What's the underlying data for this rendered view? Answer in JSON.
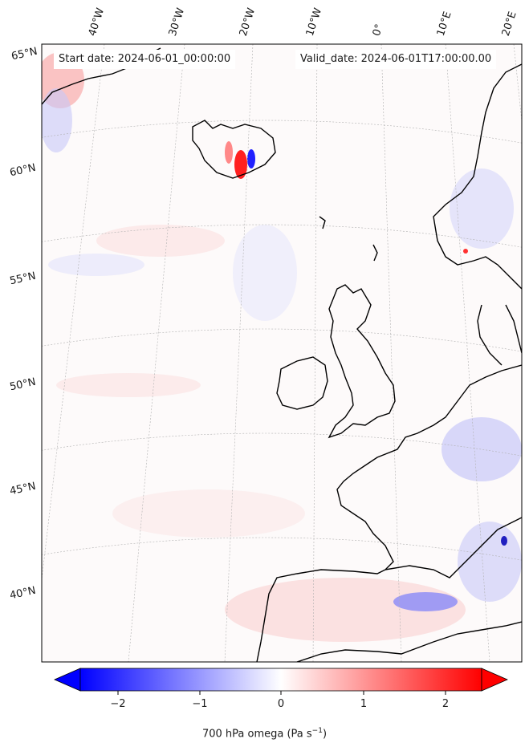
{
  "map": {
    "start_date": "Start date: 2024-06-01_00:00:00",
    "valid_date": "Valid_date: 2024-06-01T17:00:00.00",
    "lon_labels": [
      "40°W",
      "30°W",
      "20°W",
      "10°W",
      "0°",
      "10°E",
      "20°E"
    ],
    "lat_labels": [
      "65°N",
      "60°N",
      "55°N",
      "50°N",
      "45°N",
      "40°N"
    ],
    "colors": {
      "negative": "#0000ff",
      "positive": "#ff0000",
      "neutral": "#ffffff",
      "coast": "#000000"
    }
  },
  "colorbar": {
    "ticks": [
      "−2",
      "−1",
      "0",
      "1",
      "2"
    ],
    "label": "700 hPa omega (Pa s",
    "label_exp": "−1",
    "label_end": ")"
  }
}
